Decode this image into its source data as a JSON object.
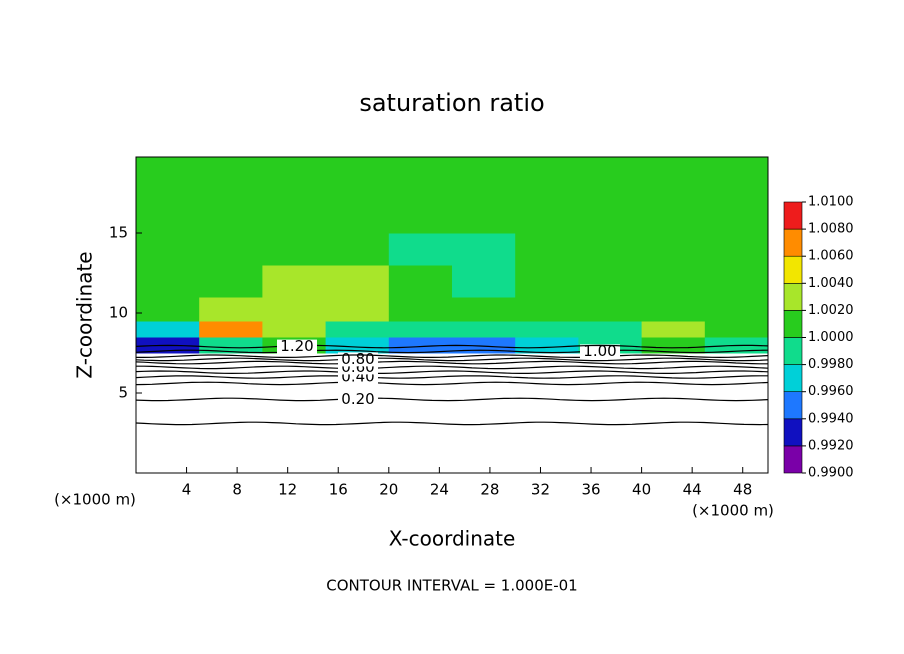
{
  "chart_data": {
    "type": "contour",
    "title": "saturation ratio",
    "x_label": "X-coordinate",
    "y_label": "Z-coordinate",
    "x_unit_label": "(×1000 m)",
    "y_unit_label": "(×1000 m)",
    "footer": "CONTOUR INTERVAL = 1.000E-01",
    "xlim": [
      0,
      50
    ],
    "ylim": [
      0,
      19.75
    ],
    "xticks": [
      4,
      8,
      12,
      16,
      20,
      24,
      28,
      32,
      36,
      40,
      44,
      48
    ],
    "yticks": [
      5,
      10,
      15
    ],
    "field": {
      "x_edges": [
        0,
        5,
        10,
        15,
        20,
        25,
        30,
        35,
        40,
        45,
        50
      ],
      "z_edges": [
        7.5,
        8.5,
        9.5,
        11,
        13,
        15,
        17.5,
        19.75
      ],
      "values": [
        [
          0.9935,
          0.9995,
          1.0001,
          0.9975,
          0.9945,
          0.9955,
          0.9965,
          0.9985,
          1.0005,
          0.9985
        ],
        [
          0.9975,
          1.0065,
          1.0035,
          0.9995,
          0.9985,
          0.9985,
          0.9995,
          0.9995,
          1.0025,
          1.0005
        ],
        [
          1.0005,
          1.0025,
          1.0025,
          1.0035,
          1.0005,
          1.0005,
          1.0005,
          1.0005,
          1.0008,
          1.0005
        ],
        [
          1.0005,
          1.0015,
          1.0025,
          1.0025,
          1.0005,
          0.9995,
          1.0005,
          1.0005,
          1.0005,
          1.0005
        ],
        [
          1.0005,
          1.0005,
          1.0005,
          1.0005,
          0.9995,
          0.9995,
          1.0005,
          1.0005,
          1.0005,
          1.0005
        ],
        [
          1.0005,
          1.0005,
          1.0005,
          1.0005,
          1.0005,
          1.0005,
          1.0005,
          1.0005,
          1.0005,
          1.0005
        ],
        [
          1.0005,
          1.0005,
          1.0005,
          1.0005,
          1.0005,
          1.0005,
          1.0005,
          1.0005,
          1.0005,
          1.0005
        ]
      ]
    },
    "colorbar": {
      "levels": [
        0.99,
        0.992,
        0.994,
        0.996,
        0.998,
        1.0,
        1.002,
        1.004,
        1.006,
        1.008,
        1.01
      ],
      "colors": [
        "#7a00a8",
        "#1010c0",
        "#1e78ff",
        "#00d0d8",
        "#10dc8c",
        "#28cc1e",
        "#a8e62a",
        "#f2e600",
        "#ff8c00",
        "#ee1c1c"
      ],
      "ticks": [
        {
          "value": 1.01,
          "label": "1.0100"
        },
        {
          "value": 1.008,
          "label": "1.0080"
        },
        {
          "value": 1.006,
          "label": "1.0060"
        },
        {
          "value": 1.004,
          "label": "1.0040"
        },
        {
          "value": 1.002,
          "label": "1.0020"
        },
        {
          "value": 1.0,
          "label": "1.0000"
        },
        {
          "value": 0.998,
          "label": "0.9980"
        },
        {
          "value": 0.996,
          "label": "0.9960"
        },
        {
          "value": 0.994,
          "label": "0.9940"
        },
        {
          "value": 0.992,
          "label": "0.9920"
        },
        {
          "value": 0.99,
          "label": "0.9900"
        }
      ]
    },
    "contours": [
      {
        "level": 0.1,
        "z": 3.1
      },
      {
        "level": 0.2,
        "z": 4.6,
        "label": "0.20"
      },
      {
        "level": 0.3,
        "z": 5.6
      },
      {
        "level": 0.4,
        "z": 6.0,
        "label": "0.40"
      },
      {
        "level": 0.5,
        "z": 6.3
      },
      {
        "level": 0.6,
        "z": 6.6,
        "label": "0.60"
      },
      {
        "level": 0.7,
        "z": 6.9
      },
      {
        "level": 0.8,
        "z": 7.1,
        "label": "0.80"
      },
      {
        "level": 0.9,
        "z": 7.3
      },
      {
        "level": 1.0,
        "z": 7.6,
        "label": "1.00"
      },
      {
        "level": 1.2,
        "z": 7.9,
        "label": "1.20"
      }
    ]
  }
}
